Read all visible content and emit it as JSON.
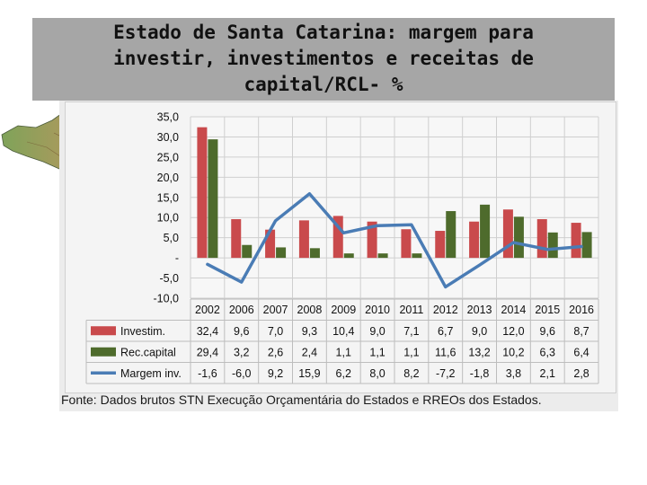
{
  "title": {
    "line1": "Estado de Santa Catarina: margem para",
    "line2": "investir, investimentos e receitas de",
    "line3": "capital/RCL- %"
  },
  "source": "Fonte: Dados brutos STN Execução Orçamentária do Estados e RREOs dos Estados.",
  "chart_data": {
    "type": "bar",
    "categories": [
      "2002",
      "2006",
      "2007",
      "2008",
      "2009",
      "2010",
      "2011",
      "2012",
      "2013",
      "2014",
      "2015",
      "2016"
    ],
    "series": [
      {
        "name": "Investim.",
        "type": "bar",
        "color": "#c94a4c",
        "values": [
          32.4,
          9.6,
          7.0,
          9.3,
          10.4,
          9.0,
          7.1,
          6.7,
          9.0,
          12.0,
          9.6,
          8.7
        ],
        "labels": [
          "32,4",
          "9,6",
          "7,0",
          "9,3",
          "10,4",
          "9,0",
          "7,1",
          "6,7",
          "9,0",
          "12,0",
          "9,6",
          "8,7"
        ]
      },
      {
        "name": "Rec.capital",
        "type": "bar",
        "color": "#4e6b2c",
        "values": [
          29.4,
          3.2,
          2.6,
          2.4,
          1.1,
          1.1,
          1.1,
          11.6,
          13.2,
          10.2,
          6.3,
          6.4
        ],
        "labels": [
          "29,4",
          "3,2",
          "2,6",
          "2,4",
          "1,1",
          "1,1",
          "1,1",
          "11,6",
          "13,2",
          "10,2",
          "6,3",
          "6,4"
        ]
      },
      {
        "name": "Margem inv.",
        "type": "line",
        "color": "#4a7cb5",
        "values": [
          -1.6,
          -6.0,
          9.2,
          15.9,
          6.2,
          8.0,
          8.2,
          -7.2,
          -1.8,
          3.8,
          2.1,
          2.8
        ],
        "labels": [
          "-1,6",
          "-6,0",
          "9,2",
          "15,9",
          "6,2",
          "8,0",
          "8,2",
          "-7,2",
          "-1,8",
          "3,8",
          "2,1",
          "2,8"
        ]
      }
    ],
    "y_ticks": [
      "35,0",
      "30,0",
      "25,0",
      "20,0",
      "15,0",
      "10,0",
      "5,0",
      "-",
      "-5,0",
      "-10,0"
    ],
    "ylim": [
      -10,
      35
    ],
    "grid": true,
    "legend": "data-table-left"
  }
}
